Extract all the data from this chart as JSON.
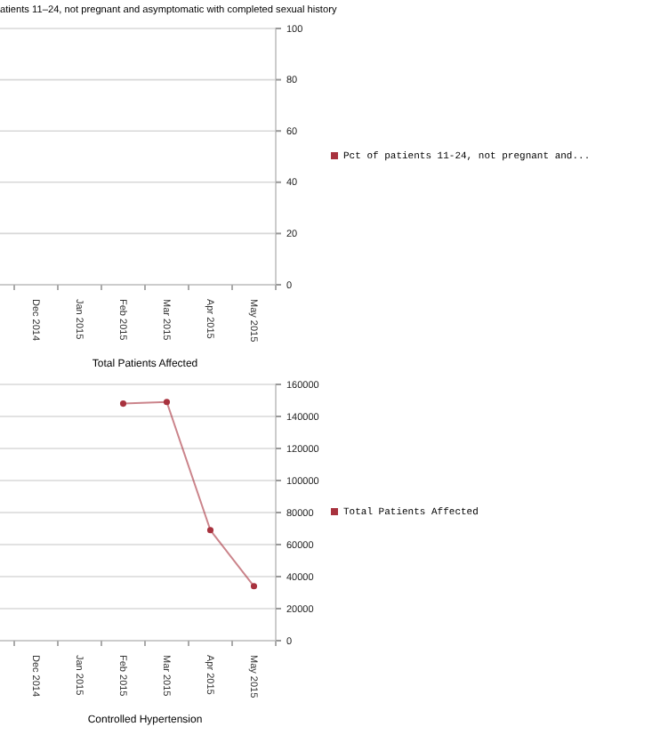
{
  "chart_data": [
    {
      "type": "line",
      "title": "atients 11–24, not pregnant and asymptomatic with completed sexual history",
      "categories": [
        "Dec 2014",
        "Jan 2015",
        "Feb 2015",
        "Mar 2015",
        "Apr 2015",
        "May 2015"
      ],
      "series": [
        {
          "name": "Pct of patients 11-24, not pregnant and...",
          "color": "#a8323e",
          "values": [
            null,
            null,
            null,
            null,
            null,
            null
          ]
        }
      ],
      "ylim": [
        0,
        100
      ],
      "yticks": [
        0,
        20,
        40,
        60,
        80,
        100
      ],
      "grid": "y",
      "legend": "right",
      "marker": "circle"
    },
    {
      "type": "line",
      "title": "Total Patients Affected",
      "categories": [
        "Dec 2014",
        "Jan 2015",
        "Feb 2015",
        "Mar 2015",
        "Apr 2015",
        "May 2015"
      ],
      "series": [
        {
          "name": "Total Patients Affected",
          "color": "#a8323e",
          "values": [
            null,
            null,
            148000,
            149000,
            69000,
            34000
          ]
        }
      ],
      "ylim": [
        0,
        160000
      ],
      "yticks": [
        0,
        20000,
        40000,
        60000,
        80000,
        100000,
        120000,
        140000,
        160000
      ],
      "grid": "y",
      "legend": "right",
      "marker": "circle",
      "annotations": [
        "Controlled Hypertension"
      ]
    }
  ]
}
